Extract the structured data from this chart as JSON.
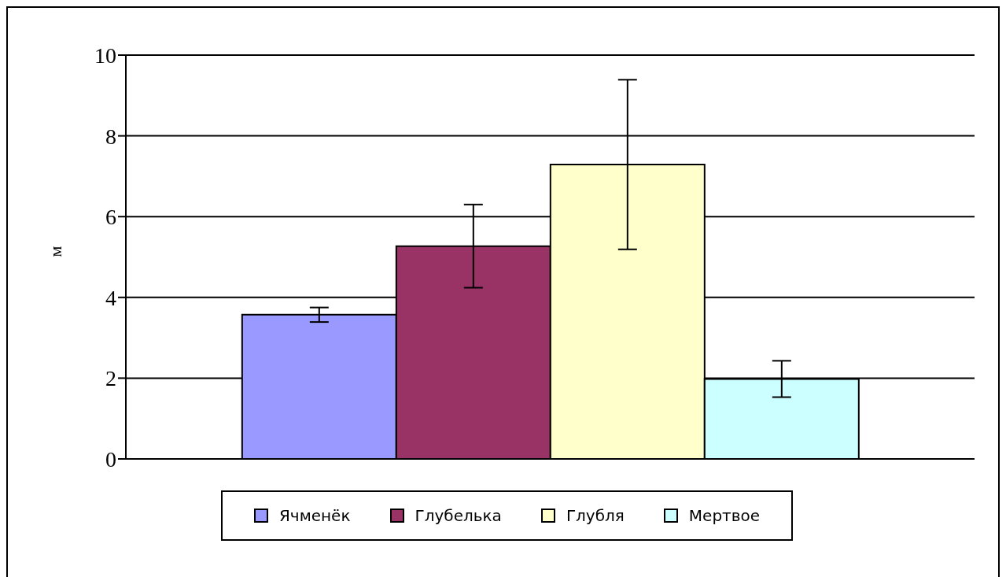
{
  "chart_data": {
    "type": "bar",
    "ylabel": "м",
    "categories": [
      null
    ],
    "series": [
      {
        "name": "Ячменёк",
        "color": "#9999ff",
        "values": [
          3.57
        ],
        "errors": [
          0.18
        ]
      },
      {
        "name": "Глубелька",
        "color": "#993366",
        "values": [
          5.27
        ],
        "errors": [
          1.03
        ]
      },
      {
        "name": "Глубля",
        "color": "#ffffcc",
        "values": [
          7.29
        ],
        "errors": [
          2.1
        ]
      },
      {
        "name": "Мертвое",
        "color": "#ccffff",
        "values": [
          1.98
        ],
        "errors": [
          0.45
        ]
      }
    ],
    "ylim": [
      0,
      10
    ],
    "yticks": [
      0,
      2,
      4,
      6,
      8,
      10
    ],
    "grid": "y",
    "legend": "bottom"
  }
}
